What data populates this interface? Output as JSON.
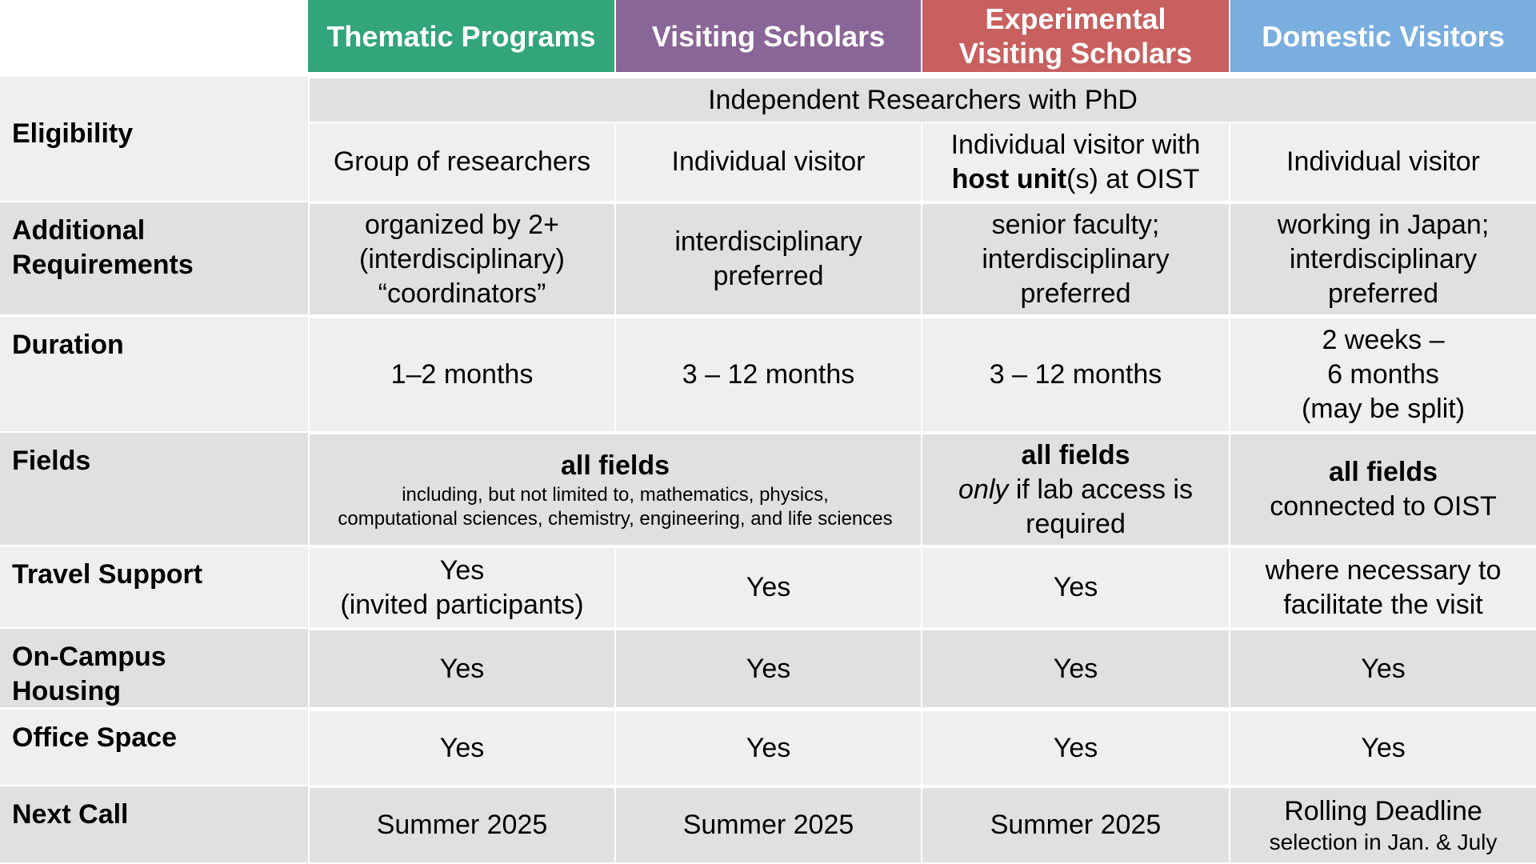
{
  "header": {
    "columns": [
      "Thematic Programs",
      "Visiting Scholars",
      [
        "Experimental",
        "Visiting Scholars"
      ],
      "Domestic Visitors"
    ]
  },
  "rows": [
    {
      "label": [
        "Eligibility"
      ],
      "shared": "Independent Researchers with PhD",
      "cells": [
        [
          "Group of researchers"
        ],
        [
          "Individual visitor"
        ],
        [
          "Individual visitor with",
          "host unit",
          "(s) at OIST"
        ],
        [
          "Individual visitor"
        ]
      ]
    },
    {
      "label": [
        "Additional",
        "Requirements"
      ],
      "cells": [
        [
          "organized by 2+",
          "(interdisciplinary)",
          "“coordinators”"
        ],
        [
          "interdisciplinary",
          "preferred"
        ],
        [
          "senior faculty;",
          "interdisciplinary",
          "preferred"
        ],
        [
          "working in Japan;",
          "interdisciplinary",
          "preferred"
        ]
      ]
    },
    {
      "label": [
        "Duration"
      ],
      "cells": [
        [
          "1–2 months"
        ],
        [
          "3 – 12 months"
        ],
        [
          "3 – 12 months"
        ],
        [
          "2 weeks –",
          "6 months",
          "(may be split)"
        ]
      ]
    },
    {
      "label": [
        "Fields"
      ],
      "span": {
        "title": "all fields",
        "note": [
          "including, but not limited to, mathematics, physics,",
          "computational sciences, chemistry, engineering, and life sciences"
        ]
      },
      "cells": [
        [
          "all fields",
          "only",
          " if lab access is",
          "required"
        ],
        [
          "all fields",
          "connected to OIST"
        ]
      ]
    },
    {
      "label": [
        "Travel Support"
      ],
      "cells": [
        [
          "Yes",
          "(invited participants)"
        ],
        [
          "Yes"
        ],
        [
          "Yes"
        ],
        [
          "where necessary to",
          "facilitate the visit"
        ]
      ]
    },
    {
      "label": [
        "On-Campus",
        "Housing"
      ],
      "cells": [
        [
          "Yes"
        ],
        [
          "Yes"
        ],
        [
          "Yes"
        ],
        [
          "Yes"
        ]
      ]
    },
    {
      "label": [
        "Office Space"
      ],
      "cells": [
        [
          "Yes"
        ],
        [
          "Yes"
        ],
        [
          "Yes"
        ],
        [
          "Yes"
        ]
      ]
    },
    {
      "label": [
        "Next Call"
      ],
      "cells": [
        [
          "Summer 2025"
        ],
        [
          "Summer 2025"
        ],
        [
          "Summer 2025"
        ],
        [
          "Rolling Deadline",
          "selection in Jan. & July"
        ]
      ]
    }
  ]
}
